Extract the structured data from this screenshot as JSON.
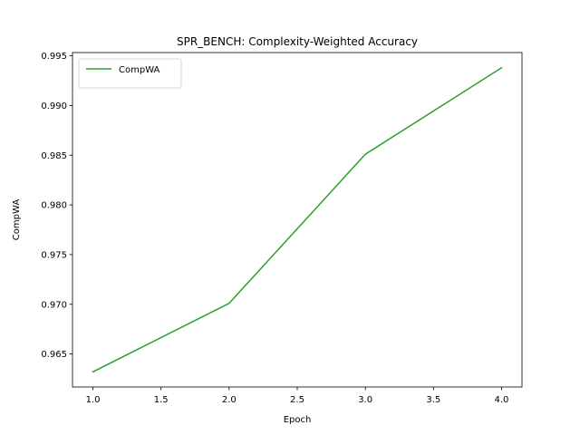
{
  "chart_data": {
    "type": "line",
    "title": "SPR_BENCH: Complexity-Weighted Accuracy",
    "xlabel": "Epoch",
    "ylabel": "CompWA",
    "x": [
      1.0,
      2.0,
      3.0,
      4.0
    ],
    "series": [
      {
        "name": "CompWA",
        "color": "#2ca02c",
        "values": [
          0.9632,
          0.9701,
          0.9851,
          0.9938
        ]
      }
    ],
    "xlim": [
      0.85,
      4.15
    ],
    "ylim": [
      0.96168,
      0.99533
    ],
    "xticks": [
      1.0,
      1.5,
      2.0,
      2.5,
      3.0,
      3.5,
      4.0
    ],
    "xtick_labels": [
      "1.0",
      "1.5",
      "2.0",
      "2.5",
      "3.0",
      "3.5",
      "4.0"
    ],
    "yticks": [
      0.965,
      0.97,
      0.975,
      0.98,
      0.985,
      0.99,
      0.995
    ],
    "ytick_labels": [
      "0.965",
      "0.970",
      "0.975",
      "0.980",
      "0.985",
      "0.990",
      "0.995"
    ],
    "grid": false,
    "legend_position": "top-left"
  }
}
